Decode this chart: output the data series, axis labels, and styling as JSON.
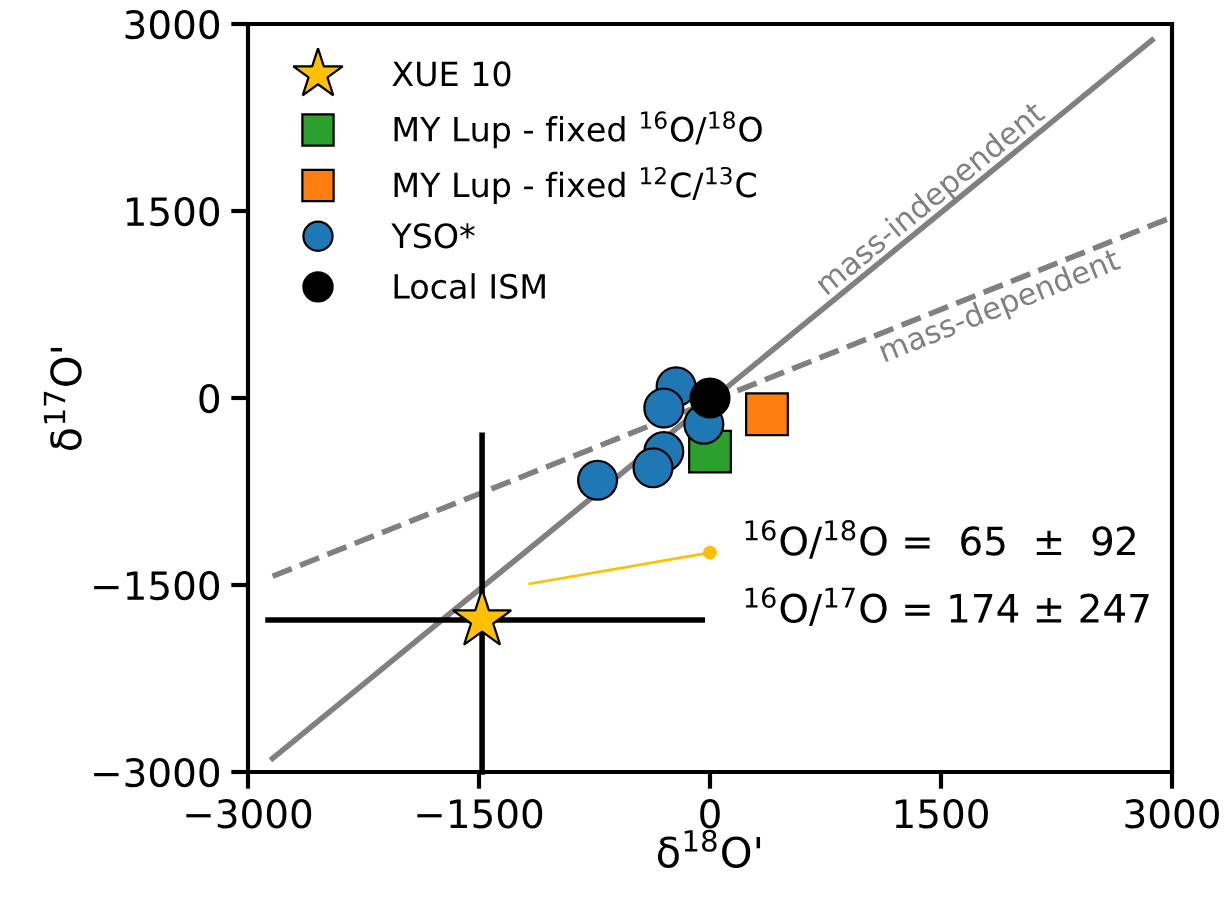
{
  "chart_data": {
    "type": "scatter",
    "xlabel": "δ$^{18}$O'",
    "ylabel": "δ$^{17}$O'",
    "xlim": [
      -3000,
      3000
    ],
    "ylim": [
      -3000,
      3000
    ],
    "xticks": [
      {
        "value": -3000,
        "label": "−3000"
      },
      {
        "value": -1500,
        "label": "−1500"
      },
      0,
      1500,
      3000
    ],
    "yticks": [
      {
        "value": -3000,
        "label": "−3000"
      },
      {
        "value": -1500,
        "label": "−1500"
      },
      0,
      1500,
      3000
    ],
    "grid": false,
    "legend": "top left",
    "series": [
      {
        "name": "mass-independent",
        "type": "line",
        "color": "#808080",
        "line_style": "solid",
        "x": [
          -2840,
          2870
        ],
        "values": [
          -2890,
          2870
        ]
      },
      {
        "name": "mass-dependent",
        "type": "line",
        "color": "#808080",
        "line_style": "dashed",
        "x": [
          -2840,
          3000
        ],
        "values": [
          -1430,
          1450
        ]
      },
      {
        "type": "line",
        "color": "#ffc000",
        "line_style": "solid",
        "x": [
          -1170,
          0
        ],
        "values": [
          -1490,
          -1240
        ]
      },
      {
        "color": "#ffc000",
        "marker": "circle",
        "x": [
          0
        ],
        "values": [
          -1240
        ]
      },
      {
        "name": "XUE 10",
        "color": "#ffc000",
        "marker": "star",
        "x": [
          -1480
        ],
        "values": [
          -1780
        ],
        "xerrors": [
          [
            -2870,
            -50
          ]
        ],
        "errors": [
          [
            -3000,
            -300
          ]
        ]
      },
      {
        "name": "MY Lup - fixed $^{16}$O/$^{18}$O",
        "color": "#2ca02c",
        "marker": "square",
        "x": [
          0
        ],
        "values": [
          -430
        ]
      },
      {
        "name": "MY Lup - fixed $^{12}$C/$^{13}$C",
        "color": "#ff7f0e",
        "marker": "square",
        "x": [
          370
        ],
        "values": [
          -130
        ]
      },
      {
        "name": "YSO*",
        "color": "#1f77b4",
        "marker": "circle",
        "x": [
          -220,
          -300,
          -40,
          -300,
          -370,
          -730
        ],
        "values": [
          90,
          -80,
          -210,
          -430,
          -560,
          -660
        ]
      },
      {
        "name": "Local ISM",
        "color": "#000000",
        "marker": "circle",
        "x": [
          0
        ],
        "values": [
          0
        ]
      }
    ],
    "annotations": [
      "$^{16}$O/$^{18}$O =  65  ±  92",
      "$^{16}$O/$^{17}$O = 174 ± 247"
    ]
  }
}
